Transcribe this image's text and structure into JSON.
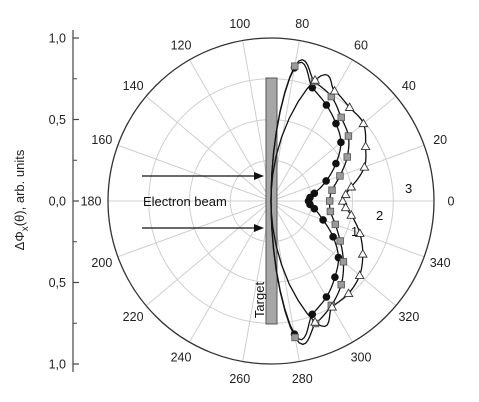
{
  "chart_data": {
    "type": "scatter",
    "coordinate_system": "polar",
    "angle_unit": "degrees",
    "angle_direction": "counterclockwise, 0 at right",
    "angular_ticks": [
      "0",
      "20",
      "40",
      "60",
      "80",
      "100",
      "120",
      "140",
      "160",
      "180",
      "200",
      "220",
      "240",
      "260",
      "280",
      "300",
      "320",
      "340"
    ],
    "radial_range": [
      0,
      1.0
    ],
    "ylabel": "ΔΦ",
    "ylabel_sub": "x",
    "ylabel_rest": "(θ), arb. units",
    "yaxis_ticks": [
      "1,0",
      "0,5",
      "0,0",
      "0,5",
      "1,0"
    ],
    "grid": true,
    "annotations": {
      "beam_label": "Electron beam",
      "target_label": "Target",
      "curve_labels": [
        "1",
        "2",
        "3"
      ]
    },
    "series": [
      {
        "name": "1",
        "marker": "circle-filled",
        "points": [
          {
            "theta": 80,
            "r": 0.83
          },
          {
            "theta": 70,
            "r": 0.74
          },
          {
            "theta": 60,
            "r": 0.68
          },
          {
            "theta": 50,
            "r": 0.62
          },
          {
            "theta": 40,
            "r": 0.56
          },
          {
            "theta": 30,
            "r": 0.46
          },
          {
            "theta": 20,
            "r": 0.36
          },
          {
            "theta": 10,
            "r": 0.27
          },
          {
            "theta": 5,
            "r": 0.24
          },
          {
            "theta": 0,
            "r": 0.23
          },
          {
            "theta": -5,
            "r": 0.24
          },
          {
            "theta": -10,
            "r": 0.27
          },
          {
            "theta": -20,
            "r": 0.34
          },
          {
            "theta": -30,
            "r": 0.44
          },
          {
            "theta": -40,
            "r": 0.54
          },
          {
            "theta": -50,
            "r": 0.61
          },
          {
            "theta": -60,
            "r": 0.68
          },
          {
            "theta": -70,
            "r": 0.74
          },
          {
            "theta": -80,
            "r": 0.83
          }
        ]
      },
      {
        "name": "2",
        "marker": "square-gray",
        "points": [
          {
            "theta": 80,
            "r": 0.84
          },
          {
            "theta": 70,
            "r": 0.78
          },
          {
            "theta": 60,
            "r": 0.74
          },
          {
            "theta": 50,
            "r": 0.67
          },
          {
            "theta": 40,
            "r": 0.62
          },
          {
            "theta": 30,
            "r": 0.54
          },
          {
            "theta": 20,
            "r": 0.45
          },
          {
            "theta": 10,
            "r": 0.38
          },
          {
            "theta": 0,
            "r": 0.36
          },
          {
            "theta": -10,
            "r": 0.37
          },
          {
            "theta": -20,
            "r": 0.42
          },
          {
            "theta": -30,
            "r": 0.49
          },
          {
            "theta": -40,
            "r": 0.58
          },
          {
            "theta": -50,
            "r": 0.67
          },
          {
            "theta": -60,
            "r": 0.74
          },
          {
            "theta": -70,
            "r": 0.8
          },
          {
            "theta": -80,
            "r": 0.85
          }
        ]
      },
      {
        "name": "3",
        "marker": "triangle-open",
        "points": [
          {
            "theta": 70,
            "r": 0.79
          },
          {
            "theta": 60,
            "r": 0.78
          },
          {
            "theta": 50,
            "r": 0.75
          },
          {
            "theta": 40,
            "r": 0.74
          },
          {
            "theta": 30,
            "r": 0.67
          },
          {
            "theta": 20,
            "r": 0.61
          },
          {
            "theta": 10,
            "r": 0.5
          },
          {
            "theta": 5,
            "r": 0.46
          },
          {
            "theta": 0,
            "r": 0.44
          },
          {
            "theta": -5,
            "r": 0.46
          },
          {
            "theta": -10,
            "r": 0.5
          },
          {
            "theta": -20,
            "r": 0.58
          },
          {
            "theta": -30,
            "r": 0.65
          },
          {
            "theta": -40,
            "r": 0.71
          },
          {
            "theta": -50,
            "r": 0.74
          },
          {
            "theta": -60,
            "r": 0.75
          },
          {
            "theta": -70,
            "r": 0.79
          }
        ]
      }
    ]
  }
}
